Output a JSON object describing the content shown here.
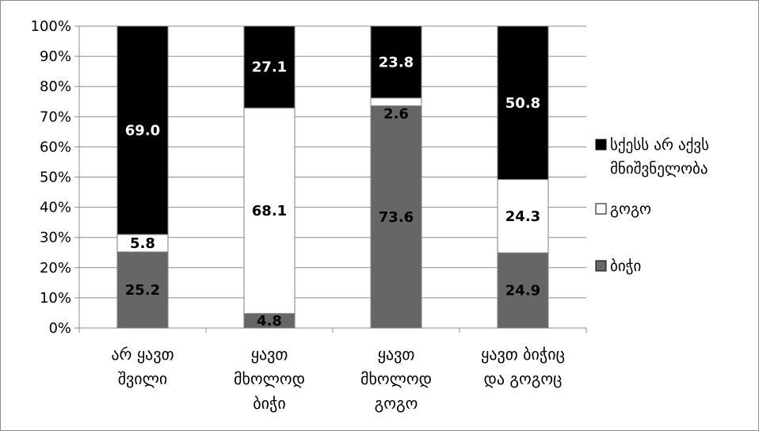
{
  "chart_data": {
    "type": "bar",
    "stacked": true,
    "percent": true,
    "categories": [
      [
        "არ ყავთ",
        "შვილი"
      ],
      [
        "ყავთ",
        "მხოლოდ",
        "ბიჭი"
      ],
      [
        "ყავთ",
        "მხოლოდ",
        "გოგო"
      ],
      [
        "ყავთ ბიჭიც",
        "და გოგოც"
      ]
    ],
    "series": [
      {
        "name": "ბიჭი",
        "values": [
          25.2,
          4.8,
          73.6,
          24.9
        ],
        "color": "#666666",
        "label_color": "#000000"
      },
      {
        "name": "გოგო",
        "values": [
          5.8,
          68.1,
          2.6,
          24.3
        ],
        "color": "#ffffff",
        "label_color": "#000000"
      },
      {
        "name": "სქესს არ აქვს მნიშვნელობა",
        "values": [
          69.0,
          27.1,
          23.8,
          50.8
        ],
        "color": "#000000",
        "label_color": "#ffffff"
      }
    ],
    "value_labels": [
      [
        "25.2",
        "4.8",
        "73.6",
        "24.9"
      ],
      [
        "5.8",
        "68.1",
        "2.6",
        "24.3"
      ],
      [
        "69.0",
        "27.1",
        "23.8",
        "50.8"
      ]
    ],
    "y_ticks": [
      "0%",
      "10%",
      "20%",
      "30%",
      "40%",
      "50%",
      "60%",
      "70%",
      "80%",
      "90%",
      "100%"
    ],
    "ylim": [
      0,
      100
    ],
    "grid": true,
    "legend": {
      "position": "right",
      "entries": [
        [
          "სქესს არ აქვს",
          "მნიშვნელობა"
        ],
        [
          "გოგო"
        ],
        [
          "ბიჭი"
        ]
      ]
    }
  }
}
